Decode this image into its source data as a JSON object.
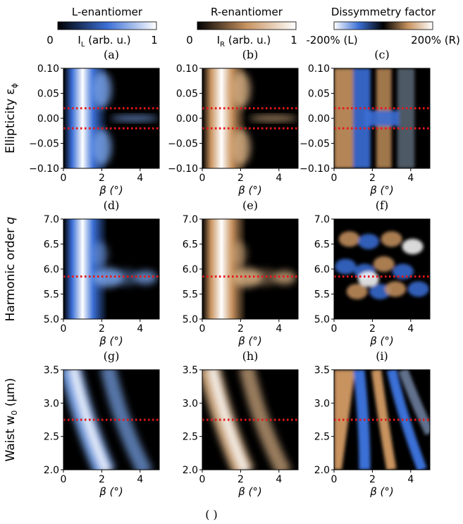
{
  "colorbars": [
    {
      "title": "L-enantiomer",
      "min_label": "0",
      "mid_label": "I",
      "mid_sub": "L",
      "mid_tail": " (arb. u.)",
      "max_label": "1",
      "colors": [
        "#000000",
        "#3b6fd6",
        "#ffffff"
      ]
    },
    {
      "title": "R-enantiomer",
      "min_label": "0",
      "mid_label": "I",
      "mid_sub": "R",
      "mid_tail": " (arb. u.)",
      "max_label": "1",
      "colors": [
        "#000000",
        "#c8935f",
        "#ffffff"
      ]
    },
    {
      "title": "Dissymmetry factor",
      "min_label": "-200% (L)",
      "max_label": "200% (R)",
      "colors": [
        "#ffffff",
        "#3b6fd6",
        "#000000",
        "#c8935f",
        "#ffffff"
      ]
    }
  ],
  "rows": [
    {
      "ylabel": "Ellipticity ε",
      "ylabel_sub": "ϕ",
      "y_ticks": [
        "0.10",
        "0.05",
        "0.00",
        "−0.05",
        "−0.10"
      ],
      "y_values": [
        0.1,
        0.05,
        0.0,
        -0.05,
        -0.1
      ],
      "ylim": [
        -0.1,
        0.1
      ],
      "dotted_lines": [
        0.02,
        -0.02
      ]
    },
    {
      "ylabel": "Harmonic order",
      "ylabel_var": "q",
      "y_ticks": [
        "7.0",
        "6.5",
        "6.0",
        "5.5",
        "5.0"
      ],
      "y_values": [
        7.0,
        6.5,
        6.0,
        5.5,
        5.0
      ],
      "ylim": [
        5.0,
        7.0
      ],
      "dotted_lines": [
        5.85
      ]
    },
    {
      "ylabel": "Waist w",
      "ylabel_sub": "0",
      "ylabel_tail": " (μm)",
      "y_ticks": [
        "3.5",
        "3.0",
        "2.5",
        "2.0"
      ],
      "y_values": [
        3.5,
        3.0,
        2.5,
        2.0
      ],
      "ylim": [
        2.0,
        3.5
      ],
      "dotted_lines": [
        2.75
      ]
    }
  ],
  "panel_labels": [
    "(a)",
    "(b)",
    "(c)",
    "(d)",
    "(e)",
    "(f)",
    "(g)",
    "(h)",
    "(i)"
  ],
  "x_axis": {
    "label": "β (°)",
    "ticks": [
      "0",
      "2",
      "4"
    ],
    "values": [
      0,
      2,
      4
    ],
    "xlim": [
      0,
      5
    ]
  },
  "chart_data": {
    "type": "heatmap",
    "columns": [
      "L-enantiomer",
      "R-enantiomer",
      "Dissymmetry factor"
    ],
    "x": {
      "label": "β (°)",
      "range": [
        0,
        5
      ]
    },
    "panels": [
      {
        "id": "(a)",
        "y_range": [
          -0.1,
          0.1
        ],
        "dotted": [
          0.02,
          -0.02
        ],
        "peak_beta": 1.0
      },
      {
        "id": "(b)",
        "y_range": [
          -0.1,
          0.1
        ],
        "dotted": [
          0.02,
          -0.02
        ],
        "peak_beta": 1.0
      },
      {
        "id": "(c)",
        "y_range": [
          -0.1,
          0.1
        ],
        "dotted": [
          0.02,
          -0.02
        ]
      },
      {
        "id": "(d)",
        "y_range": [
          5.0,
          7.0
        ],
        "dotted": [
          5.85
        ],
        "peak_beta": 1.0
      },
      {
        "id": "(e)",
        "y_range": [
          5.0,
          7.0
        ],
        "dotted": [
          5.85
        ],
        "peak_beta": 1.0
      },
      {
        "id": "(f)",
        "y_range": [
          5.0,
          7.0
        ],
        "dotted": [
          5.85
        ]
      },
      {
        "id": "(g)",
        "y_range": [
          2.0,
          3.5
        ],
        "dotted": [
          2.75
        ],
        "peak_beta": 1.0
      },
      {
        "id": "(h)",
        "y_range": [
          2.0,
          3.5
        ],
        "dotted": [
          2.75
        ],
        "peak_beta": 1.0
      },
      {
        "id": "(i)",
        "y_range": [
          2.0,
          3.5
        ],
        "dotted": [
          2.75
        ]
      }
    ],
    "dotted_line_color": "#e8161b"
  },
  "bottom_label": "( )"
}
